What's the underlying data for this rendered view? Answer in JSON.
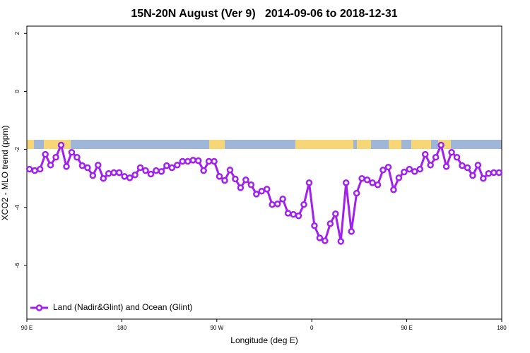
{
  "chart_data": {
    "type": "line",
    "title": "15N-20N August (Ver 9)   2014-09-06 to 2018-12-31",
    "xlabel": "Longitude (deg E)",
    "ylabel": "XCO2 - MLO trend (ppm)",
    "xlim": [
      90,
      540
    ],
    "xticks": [
      {
        "value": 90,
        "label": "90 E"
      },
      {
        "value": 180,
        "label": "180"
      },
      {
        "value": 270,
        "label": "90 W"
      },
      {
        "value": 360,
        "label": "0"
      },
      {
        "value": 450,
        "label": "90 E"
      },
      {
        "value": 540,
        "label": "180"
      }
    ],
    "ylim": [
      -7.85,
      2.25
    ],
    "yticks": [
      -6,
      -4,
      -2,
      0,
      2
    ],
    "legend": "bottom-left",
    "x": [
      92.5,
      97.5,
      102.5,
      107.5,
      112.5,
      117.5,
      122.5,
      127.5,
      132.5,
      137.5,
      142.5,
      147.5,
      152.5,
      157.5,
      162.5,
      167.5,
      172.5,
      177.5,
      182.5,
      187.5,
      192.5,
      197.5,
      202.5,
      207.5,
      212.5,
      217.5,
      222.5,
      227.5,
      232.5,
      237.5,
      242.5,
      247.5,
      252.5,
      257.5,
      262.5,
      267.5,
      272.5,
      277.5,
      282.5,
      287.5,
      292.5,
      297.5,
      302.5,
      307.5,
      312.5,
      317.5,
      322.5,
      327.5,
      332.5,
      337.5,
      342.5,
      347.5,
      352.5,
      357.5,
      362.5,
      367.5,
      372.5,
      377.5,
      382.5,
      387.5,
      392.5,
      397.5,
      402.5,
      407.5,
      412.5,
      417.5,
      422.5,
      427.5,
      432.5,
      437.5,
      442.5,
      447.5,
      452.5,
      457.5,
      462.5,
      467.5,
      472.5,
      477.5,
      482.5,
      487.5,
      492.5,
      497.5,
      502.5,
      507.5,
      512.5,
      517.5,
      522.5,
      527.5,
      532.5,
      537.5
    ],
    "series": [
      {
        "name": "Land (Nadir&Glint) and Ocean (Glint)",
        "color": "#a020f0",
        "values": [
          -2.68,
          -2.73,
          -2.68,
          -2.17,
          -2.54,
          -2.27,
          -1.85,
          -2.59,
          -2.1,
          -2.27,
          -2.56,
          -2.63,
          -2.9,
          -2.54,
          -3.0,
          -2.83,
          -2.8,
          -2.8,
          -2.93,
          -2.98,
          -2.88,
          -2.63,
          -2.73,
          -2.85,
          -2.73,
          -2.76,
          -2.56,
          -2.63,
          -2.54,
          -2.41,
          -2.41,
          -2.37,
          -2.39,
          -2.73,
          -2.41,
          -2.41,
          -2.93,
          -3.07,
          -2.71,
          -3.02,
          -3.32,
          -3.05,
          -3.22,
          -3.54,
          -3.44,
          -3.37,
          -3.9,
          -3.88,
          -3.71,
          -4.2,
          -4.24,
          -4.29,
          -3.9,
          -3.15,
          -4.63,
          -5.05,
          -5.15,
          -4.56,
          -4.22,
          -5.17,
          -3.15,
          -4.83,
          -3.51,
          -3.0,
          -3.05,
          -3.15,
          -3.22,
          -2.71,
          -2.61,
          -3.39,
          -2.98,
          -2.78,
          -2.68,
          -2.76,
          -2.68,
          -2.17,
          -2.54,
          -2.27,
          -1.85,
          -2.59,
          -2.1,
          -2.27,
          -2.56,
          -2.63,
          -2.9,
          -2.54,
          -3.0,
          -2.83,
          -2.8,
          -2.8
        ]
      }
    ]
  }
}
